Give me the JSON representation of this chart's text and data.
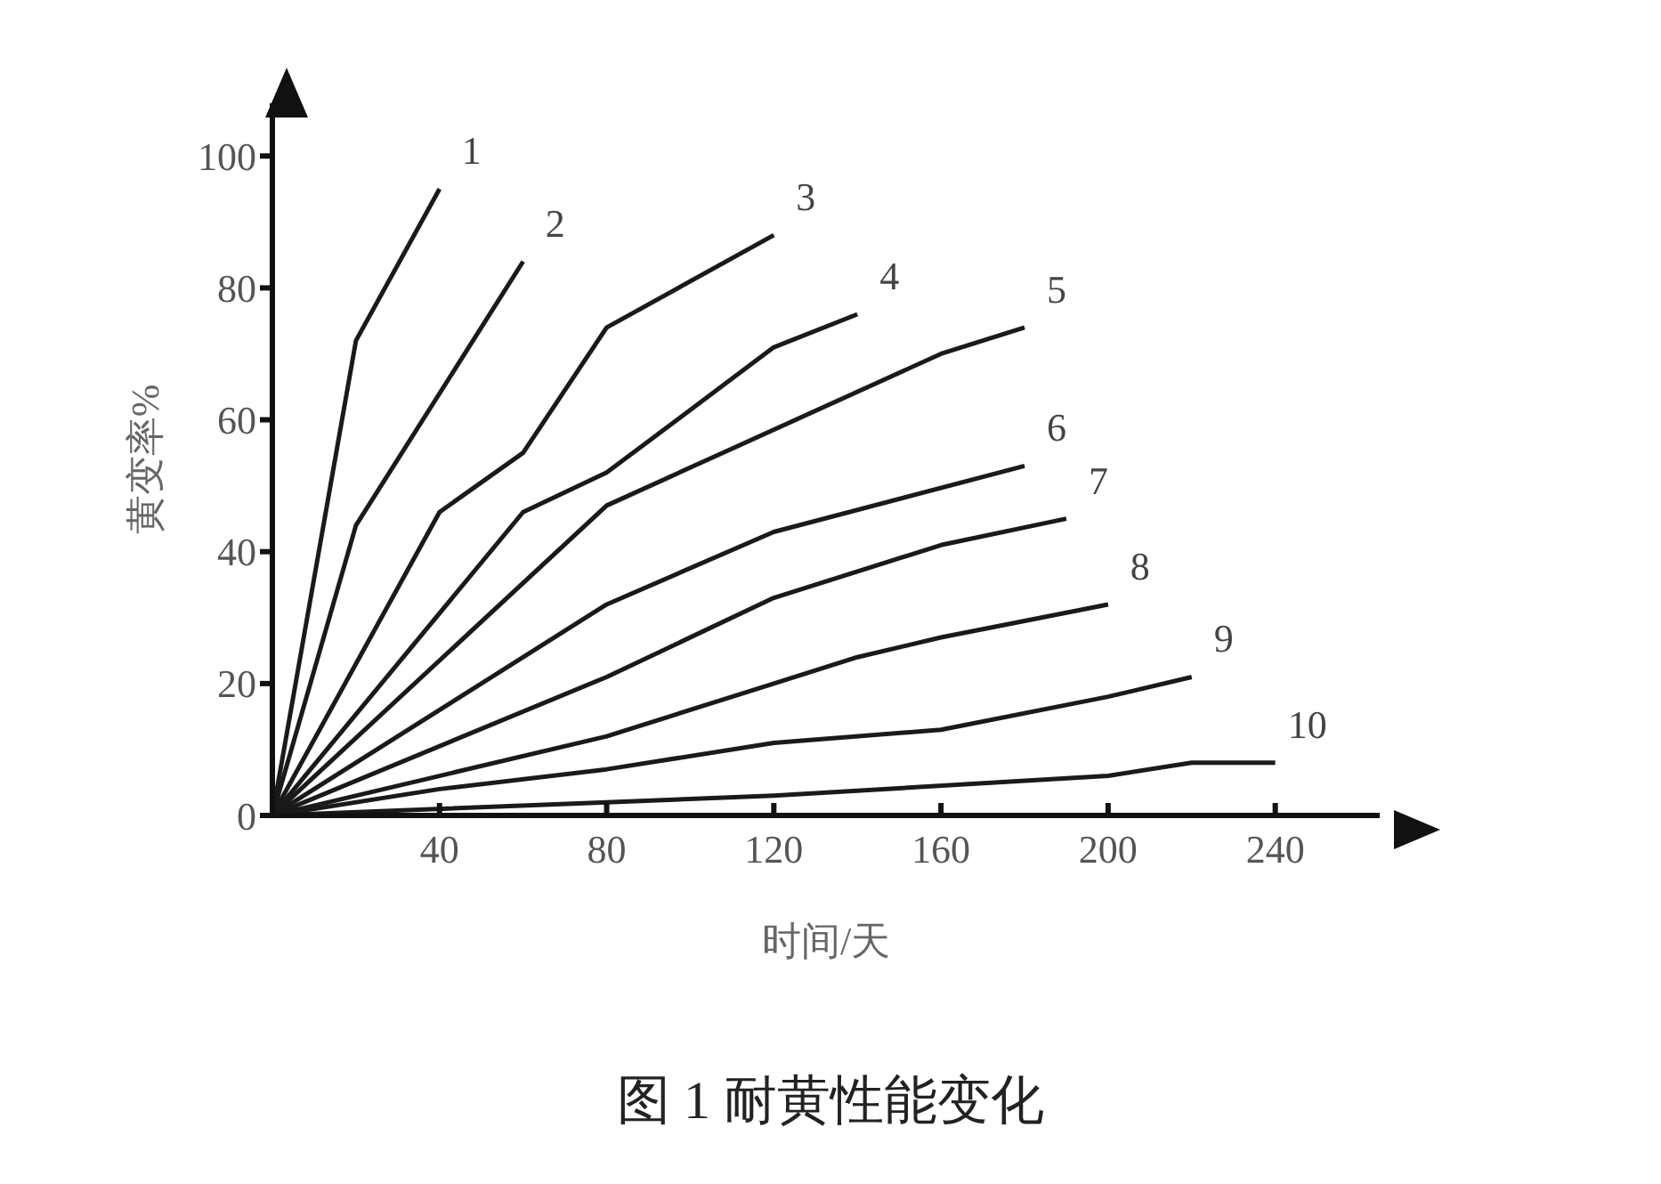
{
  "chart_data": {
    "type": "line",
    "title": "图 1 耐黄性能变化",
    "xlabel": "时间/天",
    "ylabel": "黄变率%",
    "xlim": [
      0,
      265
    ],
    "xticks": [
      40,
      80,
      120,
      160,
      200,
      240
    ],
    "ylim": [
      0,
      108
    ],
    "yticks": [
      0,
      20,
      40,
      60,
      80,
      100
    ],
    "grid": false,
    "legend": false,
    "marker": "none",
    "line_style": "solid",
    "series": [
      {
        "name": "1",
        "color": "#1a1a1a",
        "x": [
          0,
          20,
          40
        ],
        "values": [
          0,
          72,
          95
        ]
      },
      {
        "name": "2",
        "color": "#1a1a1a",
        "x": [
          0,
          20,
          60
        ],
        "values": [
          0,
          44,
          84
        ]
      },
      {
        "name": "3",
        "color": "#1a1a1a",
        "x": [
          0,
          40,
          60,
          80,
          120
        ],
        "values": [
          0,
          46,
          55,
          74,
          88
        ]
      },
      {
        "name": "4",
        "color": "#1a1a1a",
        "x": [
          0,
          60,
          80,
          120,
          140
        ],
        "values": [
          0,
          46,
          52,
          71,
          76
        ]
      },
      {
        "name": "5",
        "color": "#1a1a1a",
        "x": [
          0,
          80,
          160,
          180
        ],
        "values": [
          0,
          47,
          70,
          74
        ]
      },
      {
        "name": "6",
        "color": "#1a1a1a",
        "x": [
          0,
          80,
          120,
          180
        ],
        "values": [
          0,
          32,
          43,
          53
        ]
      },
      {
        "name": "7",
        "color": "#1a1a1a",
        "x": [
          0,
          80,
          120,
          160,
          190
        ],
        "values": [
          0,
          21,
          33,
          41,
          45
        ]
      },
      {
        "name": "8",
        "color": "#1a1a1a",
        "x": [
          0,
          80,
          120,
          140,
          160,
          200
        ],
        "values": [
          0,
          12,
          20,
          24,
          27,
          32
        ]
      },
      {
        "name": "9",
        "color": "#1a1a1a",
        "x": [
          0,
          40,
          80,
          120,
          160,
          200,
          220
        ],
        "values": [
          0,
          4,
          7,
          11,
          13,
          18,
          21
        ]
      },
      {
        "name": "10",
        "color": "#1a1a1a",
        "x": [
          0,
          80,
          120,
          200,
          220,
          240
        ],
        "values": [
          0,
          2,
          3,
          6,
          8,
          8
        ]
      }
    ]
  }
}
